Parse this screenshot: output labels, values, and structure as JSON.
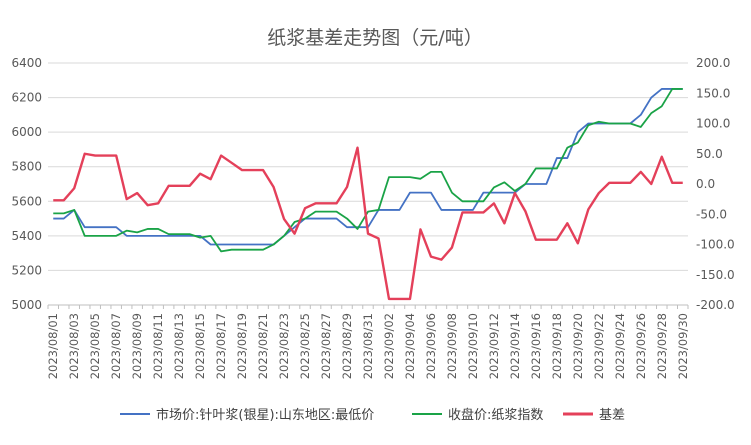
{
  "chart_data": {
    "type": "line",
    "title": "纸浆基差走势图（元/吨）",
    "x": [
      "2023/08/01",
      "2023/08/02",
      "2023/08/03",
      "2023/08/04",
      "2023/08/05",
      "2023/08/06",
      "2023/08/07",
      "2023/08/08",
      "2023/08/09",
      "2023/08/10",
      "2023/08/11",
      "2023/08/12",
      "2023/08/13",
      "2023/08/14",
      "2023/08/15",
      "2023/08/16",
      "2023/08/17",
      "2023/08/18",
      "2023/08/19",
      "2023/08/20",
      "2023/08/21",
      "2023/08/22",
      "2023/08/23",
      "2023/08/24",
      "2023/08/25",
      "2023/08/26",
      "2023/08/27",
      "2023/08/28",
      "2023/08/29",
      "2023/08/30",
      "2023/08/31",
      "2023/09/01",
      "2023/09/02",
      "2023/09/03",
      "2023/09/04",
      "2023/09/05",
      "2023/09/06",
      "2023/09/07",
      "2023/09/08",
      "2023/09/09",
      "2023/09/10",
      "2023/09/11",
      "2023/09/12",
      "2023/09/13",
      "2023/09/14",
      "2023/09/15",
      "2023/09/16",
      "2023/09/17",
      "2023/09/18",
      "2023/09/19",
      "2023/09/20",
      "2023/09/21",
      "2023/09/22",
      "2023/09/23",
      "2023/09/24",
      "2023/09/25",
      "2023/09/26",
      "2023/09/27",
      "2023/09/28",
      "2023/09/29",
      "2023/09/30"
    ],
    "x_tick_labels": [
      "2023/08/01",
      "2023/08/03",
      "2023/08/05",
      "2023/08/07",
      "2023/08/09",
      "2023/08/11",
      "2023/08/13",
      "2023/08/15",
      "2023/08/17",
      "2023/08/19",
      "2023/08/21",
      "2023/08/23",
      "2023/08/25",
      "2023/08/27",
      "2023/08/29",
      "2023/08/31",
      "2023/09/02",
      "2023/09/04",
      "2023/09/06",
      "2023/09/08",
      "2023/09/10",
      "2023/09/12",
      "2023/09/14",
      "2023/09/16",
      "2023/09/18",
      "2023/09/20",
      "2023/09/22",
      "2023/09/24",
      "2023/09/26",
      "2023/09/28",
      "2023/09/30"
    ],
    "ylim_left": [
      5000,
      6400
    ],
    "yticks_left": [
      "5000",
      "5200",
      "5400",
      "5600",
      "5800",
      "6000",
      "6200",
      "6400"
    ],
    "ylim_right": [
      -200,
      200
    ],
    "yticks_right": [
      "-200.0",
      "-150.0",
      "-100.0",
      "-50.0",
      "0.0",
      "50.0",
      "100.0",
      "150.0",
      "200.0"
    ],
    "grid": "horizontal",
    "legend_position": "bottom",
    "series": [
      {
        "name": "市场价:针叶浆(银星):山东地区:最低价",
        "axis": "left",
        "color": "#4472c4",
        "values": [
          5500,
          5500,
          5550,
          5450,
          5450,
          5450,
          5450,
          5400,
          5400,
          5400,
          5400,
          5400,
          5400,
          5400,
          5400,
          5350,
          5350,
          5350,
          5350,
          5350,
          5350,
          5350,
          5400,
          5450,
          5500,
          5500,
          5500,
          5500,
          5450,
          5450,
          5450,
          5550,
          5550,
          5550,
          5650,
          5650,
          5650,
          5550,
          5550,
          5550,
          5550,
          5650,
          5650,
          5650,
          5650,
          5700,
          5700,
          5700,
          5850,
          5850,
          6000,
          6050,
          6050,
          6050,
          6050,
          6050,
          6100,
          6200,
          6250,
          6250,
          6250
        ]
      },
      {
        "name": "收盘价:纸浆指数",
        "axis": "left",
        "color": "#1aa347",
        "values": [
          5530,
          5530,
          5550,
          5400,
          5400,
          5400,
          5400,
          5430,
          5420,
          5440,
          5440,
          5410,
          5410,
          5410,
          5390,
          5400,
          5310,
          5320,
          5320,
          5320,
          5320,
          5350,
          5400,
          5480,
          5500,
          5540,
          5540,
          5540,
          5500,
          5440,
          5540,
          5550,
          5740,
          5740,
          5740,
          5730,
          5770,
          5770,
          5650,
          5600,
          5600,
          5600,
          5680,
          5710,
          5660,
          5700,
          5790,
          5790,
          5790,
          5910,
          5940,
          6040,
          6060,
          6050,
          6050,
          6050,
          6030,
          6110,
          6150,
          6250,
          6250
        ]
      },
      {
        "name": "基差",
        "axis": "right",
        "color": "#e4405a",
        "values": [
          -27,
          -27,
          -7,
          50,
          47,
          47,
          47,
          -25,
          -15,
          -35,
          -32,
          -3,
          -3,
          -3,
          17,
          8,
          47,
          35,
          23,
          23,
          23,
          -5,
          -58,
          -82,
          -40,
          -32,
          -32,
          -32,
          -5,
          60,
          -82,
          -90,
          -190,
          -190,
          -190,
          -75,
          -120,
          -125,
          -105,
          -47,
          -47,
          -47,
          -32,
          -65,
          -15,
          -45,
          -92,
          -92,
          -92,
          -65,
          -98,
          -42,
          -15,
          2,
          2,
          2,
          20,
          0,
          45,
          2,
          2
        ]
      }
    ]
  }
}
